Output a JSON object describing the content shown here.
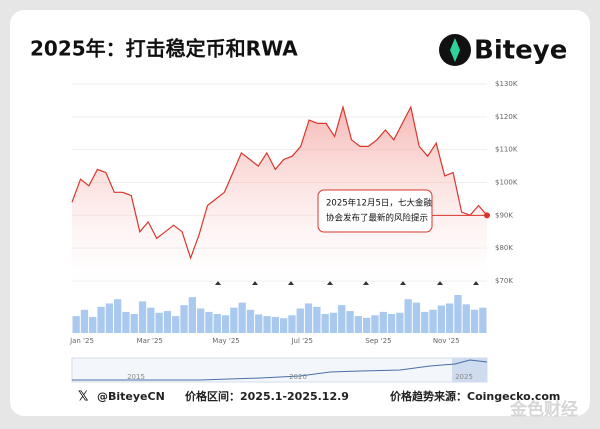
{
  "header": {
    "title": "2025年：打击稳定币和RWA",
    "logo": "Biteye"
  },
  "chart_data": {
    "type": "line",
    "categories": [
      "Jan '25",
      null,
      null,
      null,
      null,
      null,
      null,
      null,
      "Mar '25",
      null,
      null,
      null,
      null,
      null,
      null,
      null,
      null,
      "May '25",
      null,
      null,
      null,
      null,
      null,
      null,
      null,
      null,
      "Jul '25",
      null,
      null,
      null,
      null,
      null,
      null,
      null,
      null,
      "Sep '25",
      null,
      null,
      null,
      null,
      null,
      null,
      null,
      "Nov '25",
      null,
      null,
      null,
      null,
      null,
      null
    ],
    "values": [
      94,
      101,
      99,
      104,
      103,
      97,
      97,
      96,
      85,
      88,
      83,
      85,
      87,
      85,
      77,
      84,
      93,
      95,
      97,
      103,
      109,
      107,
      105,
      109,
      104,
      107,
      108,
      111,
      119,
      118,
      118,
      114,
      123,
      113,
      111,
      111,
      113,
      116,
      113,
      118,
      123,
      111,
      108,
      112,
      102,
      103,
      91,
      90,
      93,
      90
    ],
    "volume": [
      40,
      55,
      38,
      62,
      70,
      80,
      50,
      45,
      75,
      60,
      48,
      52,
      40,
      66,
      85,
      58,
      50,
      45,
      42,
      60,
      72,
      55,
      44,
      40,
      38,
      35,
      42,
      58,
      70,
      62,
      45,
      48,
      66,
      52,
      40,
      36,
      42,
      50,
      45,
      48,
      80,
      72,
      50,
      55,
      65,
      70,
      90,
      68,
      55,
      60
    ],
    "color": "#d9362c",
    "volume_color": "#a9c9ee",
    "ylim": [
      70,
      130
    ],
    "yticks": [
      {
        "value": 70,
        "label": "$70K"
      },
      {
        "value": 80,
        "label": "$80K"
      },
      {
        "value": 90,
        "label": "$90K"
      },
      {
        "value": 100,
        "label": "$100K"
      },
      {
        "value": 110,
        "label": "$110K"
      },
      {
        "value": 120,
        "label": "$120K"
      },
      {
        "value": 130,
        "label": "$130K"
      }
    ],
    "annotation": [
      "2025年12月5日，七大金融",
      "协会发布了最新的风险提示"
    ]
  },
  "navigator": {
    "labels": [
      "2015",
      "2020",
      "2025"
    ]
  },
  "footer": {
    "handle": "@BiteyeCN",
    "range": "价格区间：2025.1-2025.12.9",
    "source": "价格趋势来源：Coingecko.com"
  },
  "watermark": "金色财经"
}
